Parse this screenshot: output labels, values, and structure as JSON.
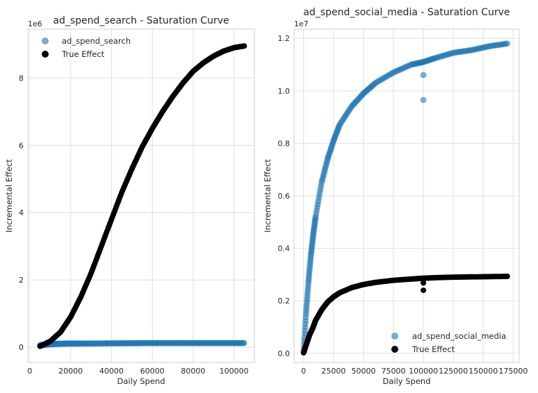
{
  "chart_data": [
    {
      "type": "scatter",
      "title": "ad_spend_search - Saturation Curve",
      "xlabel": "Daily Spend",
      "ylabel": "Incremental Effect",
      "offset_label": "1e6",
      "xlim": [
        -1000,
        110000
      ],
      "ylim": [
        -450000,
        9450000
      ],
      "xticks": [
        0,
        20000,
        40000,
        60000,
        80000,
        100000
      ],
      "xtick_labels": [
        "0",
        "20000",
        "40000",
        "60000",
        "80000",
        "100000"
      ],
      "yticks": [
        0,
        2000000,
        4000000,
        6000000,
        8000000
      ],
      "ytick_labels": [
        "0",
        "2",
        "4",
        "6",
        "8"
      ],
      "grid": true,
      "legend_position": "upper-left",
      "series": [
        {
          "name": "ad_spend_search",
          "color": "#1f77b4",
          "points": [
            [
              5000,
              60000
            ],
            [
              8000,
              80000
            ],
            [
              12000,
              100000
            ],
            [
              18000,
              110000
            ],
            [
              25000,
              110000
            ],
            [
              35000,
              115000
            ],
            [
              45000,
              120000
            ],
            [
              55000,
              125000
            ],
            [
              65000,
              125000
            ],
            [
              75000,
              125000
            ],
            [
              85000,
              125000
            ],
            [
              95000,
              125000
            ],
            [
              105000,
              125000
            ]
          ]
        },
        {
          "name": "True Effect",
          "color": "#000000",
          "points": [
            [
              5000,
              30000
            ],
            [
              10000,
              180000
            ],
            [
              15000,
              450000
            ],
            [
              20000,
              900000
            ],
            [
              25000,
              1500000
            ],
            [
              30000,
              2200000
            ],
            [
              35000,
              3000000
            ],
            [
              40000,
              3800000
            ],
            [
              45000,
              4600000
            ],
            [
              50000,
              5300000
            ],
            [
              55000,
              5950000
            ],
            [
              60000,
              6500000
            ],
            [
              65000,
              7000000
            ],
            [
              70000,
              7450000
            ],
            [
              75000,
              7850000
            ],
            [
              80000,
              8200000
            ],
            [
              85000,
              8450000
            ],
            [
              90000,
              8650000
            ],
            [
              95000,
              8800000
            ],
            [
              100000,
              8900000
            ],
            [
              105000,
              8950000
            ]
          ]
        }
      ]
    },
    {
      "type": "scatter",
      "title": "ad_spend_social_media - Saturation Curve",
      "xlabel": "Daily Spend",
      "ylabel": "Incremental Effect",
      "offset_label": "1e7",
      "xlim": [
        -8000,
        180000
      ],
      "ylim": [
        -350000,
        12350000
      ],
      "xticks": [
        0,
        25000,
        50000,
        75000,
        100000,
        125000,
        150000,
        175000
      ],
      "xtick_labels": [
        "0",
        "25000",
        "50000",
        "75000",
        "100000",
        "125000",
        "150000",
        "175000"
      ],
      "yticks": [
        0,
        2000000,
        4000000,
        6000000,
        8000000,
        10000000,
        12000000
      ],
      "ytick_labels": [
        "0.0",
        "0.2",
        "0.4",
        "0.6",
        "0.8",
        "1.0",
        "1.2"
      ],
      "grid": true,
      "legend_position": "lower-right",
      "series": [
        {
          "name": "ad_spend_social_media",
          "color": "#1f77b4",
          "points": [
            [
              0,
              100000
            ],
            [
              2000,
              1500000
            ],
            [
              4000,
              2700000
            ],
            [
              6000,
              3700000
            ],
            [
              8000,
              4500000
            ],
            [
              10000,
              5200000
            ],
            [
              15000,
              6500000
            ],
            [
              20000,
              7400000
            ],
            [
              25000,
              8100000
            ],
            [
              30000,
              8700000
            ],
            [
              40000,
              9400000
            ],
            [
              50000,
              9900000
            ],
            [
              60000,
              10300000
            ],
            [
              75000,
              10700000
            ],
            [
              90000,
              11000000
            ],
            [
              100000,
              11100000
            ],
            [
              100000,
              10600000
            ],
            [
              100000,
              9650000
            ],
            [
              110000,
              11250000
            ],
            [
              125000,
              11450000
            ],
            [
              140000,
              11550000
            ],
            [
              155000,
              11700000
            ],
            [
              170000,
              11800000
            ]
          ]
        },
        {
          "name": "True Effect",
          "color": "#000000",
          "points": [
            [
              0,
              20000
            ],
            [
              2000,
              300000
            ],
            [
              5000,
              700000
            ],
            [
              8000,
              1000000
            ],
            [
              10000,
              1250000
            ],
            [
              15000,
              1650000
            ],
            [
              20000,
              1950000
            ],
            [
              25000,
              2150000
            ],
            [
              30000,
              2300000
            ],
            [
              40000,
              2500000
            ],
            [
              50000,
              2620000
            ],
            [
              60000,
              2700000
            ],
            [
              75000,
              2780000
            ],
            [
              90000,
              2830000
            ],
            [
              100000,
              2860000
            ],
            [
              100000,
              2680000
            ],
            [
              100000,
              2400000
            ],
            [
              110000,
              2880000
            ],
            [
              125000,
              2900000
            ],
            [
              140000,
              2910000
            ],
            [
              155000,
              2920000
            ],
            [
              170000,
              2930000
            ]
          ]
        }
      ]
    }
  ]
}
